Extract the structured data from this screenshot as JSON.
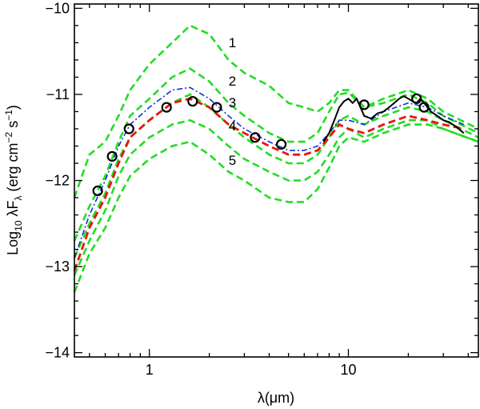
{
  "chart_data": {
    "type": "line",
    "x_scale": "log",
    "xlim": [
      0.42,
      45
    ],
    "ylim": [
      -14.05,
      -9.95
    ],
    "xlabel": "λ(μm)",
    "ylabel": "Log10 λFλ (erg cm−2 s−1)",
    "ylabel_parts": {
      "lead": "Log",
      "sub10": "10",
      "lam": " λF",
      "subl": "λ",
      "units": " (erg cm",
      "exp1": "−2",
      "s": " s",
      "exp2": "−1",
      "close": ")"
    },
    "x_ticks_labeled": [
      {
        "v": 1,
        "label": "1"
      },
      {
        "v": 10,
        "label": "10"
      }
    ],
    "x_ticks_minor": [
      0.5,
      0.6,
      0.7,
      0.8,
      0.9,
      2,
      3,
      4,
      5,
      6,
      7,
      8,
      9,
      20,
      30,
      40
    ],
    "y_ticks_labeled": [
      {
        "v": -10,
        "label": "−10"
      },
      {
        "v": -11,
        "label": "−11"
      },
      {
        "v": -12,
        "label": "−12"
      },
      {
        "v": -13,
        "label": "−13"
      },
      {
        "v": -14,
        "label": "−14"
      }
    ],
    "y_minor_step": 0.2,
    "series": [
      {
        "name": "model 1",
        "label": "1",
        "color": "#22dd22",
        "style": "dashed",
        "x": [
          0.42,
          0.5,
          0.6,
          0.7,
          0.8,
          1.0,
          1.3,
          1.6,
          2.0,
          2.5,
          3.0,
          4.0,
          5.0,
          6.0,
          7.0,
          8.0,
          9.0,
          10,
          12,
          15,
          20,
          25,
          30,
          45
        ],
        "y": [
          -12.2,
          -11.7,
          -11.55,
          -11.25,
          -10.95,
          -10.65,
          -10.4,
          -10.2,
          -10.3,
          -10.6,
          -10.75,
          -10.9,
          -11.1,
          -11.15,
          -11.2,
          -11.1,
          -10.95,
          -10.95,
          -11.15,
          -11.05,
          -10.95,
          -11.05,
          -11.2,
          -11.4
        ]
      },
      {
        "name": "model 2",
        "label": "2",
        "color": "#22dd22",
        "style": "dashed",
        "x": [
          0.42,
          0.5,
          0.6,
          0.7,
          0.8,
          1.0,
          1.3,
          1.6,
          2.0,
          2.5,
          3.0,
          4.0,
          5.0,
          6.0,
          7.0,
          8.0,
          9.0,
          10,
          12,
          15,
          20,
          25,
          30,
          45
        ],
        "y": [
          -12.7,
          -12.3,
          -11.95,
          -11.55,
          -11.25,
          -11.05,
          -10.8,
          -10.7,
          -10.85,
          -11.1,
          -11.25,
          -11.45,
          -11.55,
          -11.55,
          -11.45,
          -11.2,
          -11.0,
          -10.98,
          -11.15,
          -11.1,
          -11.0,
          -11.1,
          -11.25,
          -11.45
        ]
      },
      {
        "name": "model 3",
        "label": "3",
        "color": "#22dd22",
        "style": "dashed",
        "x": [
          0.42,
          0.5,
          0.6,
          0.7,
          0.8,
          1.0,
          1.3,
          1.6,
          2.0,
          2.5,
          3.0,
          4.0,
          5.0,
          6.0,
          7.0,
          8.0,
          9.0,
          10,
          12,
          15,
          20,
          25,
          30,
          45
        ],
        "y": [
          -12.9,
          -12.5,
          -12.15,
          -11.75,
          -11.5,
          -11.3,
          -11.1,
          -11.0,
          -11.15,
          -11.35,
          -11.5,
          -11.7,
          -11.8,
          -11.8,
          -11.7,
          -11.5,
          -11.3,
          -11.25,
          -11.35,
          -11.25,
          -11.15,
          -11.2,
          -11.3,
          -11.5
        ]
      },
      {
        "name": "model 4",
        "label": "4",
        "color": "#22dd22",
        "style": "dashed",
        "x": [
          0.42,
          0.5,
          0.6,
          0.7,
          0.8,
          1.0,
          1.3,
          1.6,
          2.0,
          2.5,
          3.0,
          4.0,
          5.0,
          6.0,
          7.0,
          8.0,
          9.0,
          10,
          12,
          15,
          20,
          25,
          30,
          45
        ],
        "y": [
          -13.1,
          -12.7,
          -12.35,
          -11.95,
          -11.7,
          -11.5,
          -11.35,
          -11.3,
          -11.4,
          -11.6,
          -11.75,
          -11.9,
          -12.0,
          -12.0,
          -11.9,
          -11.7,
          -11.5,
          -11.4,
          -11.5,
          -11.4,
          -11.3,
          -11.3,
          -11.4,
          -11.55
        ]
      },
      {
        "name": "model 5",
        "label": "5",
        "color": "#22dd22",
        "style": "dashed",
        "x": [
          0.42,
          0.5,
          0.6,
          0.7,
          0.8,
          1.0,
          1.3,
          1.6,
          2.0,
          2.5,
          3.0,
          4.0,
          5.0,
          6.0,
          7.0,
          8.0,
          9.0,
          10,
          12,
          15,
          20,
          25,
          30,
          45
        ],
        "y": [
          -13.3,
          -12.85,
          -12.55,
          -12.2,
          -11.95,
          -11.75,
          -11.6,
          -11.55,
          -11.7,
          -11.9,
          -12.0,
          -12.2,
          -12.25,
          -12.25,
          -12.1,
          -11.85,
          -11.6,
          -11.5,
          -11.55,
          -11.45,
          -11.35,
          -11.35,
          -11.4,
          -11.55
        ]
      },
      {
        "name": "fit (red)",
        "label": "",
        "color": "#ee1111",
        "style": "dashed",
        "x": [
          0.42,
          0.5,
          0.6,
          0.7,
          0.8,
          1.0,
          1.3,
          1.6,
          2.0,
          2.5,
          3.0,
          4.0,
          5.0,
          6.0,
          7.0,
          8.0,
          9.0,
          10,
          12,
          15,
          20,
          25,
          30,
          38
        ],
        "y": [
          -13.05,
          -12.55,
          -12.2,
          -11.8,
          -11.5,
          -11.3,
          -11.1,
          -11.05,
          -11.15,
          -11.35,
          -11.45,
          -11.6,
          -11.7,
          -11.7,
          -11.65,
          -11.5,
          -11.35,
          -11.4,
          -11.45,
          -11.35,
          -11.25,
          -11.3,
          -11.35,
          -11.4
        ]
      },
      {
        "name": "fit (blue)",
        "label": "",
        "color": "#1133cc",
        "style": "dashdot",
        "x": [
          0.42,
          0.5,
          0.6,
          0.7,
          0.8,
          1.0,
          1.3,
          1.6,
          2.0,
          2.5,
          3.0,
          4.0,
          5.0,
          6.0,
          7.0,
          8.0,
          9.0,
          10,
          12,
          15,
          20,
          25,
          30,
          38
        ],
        "y": [
          -12.9,
          -12.4,
          -12.0,
          -11.6,
          -11.35,
          -11.15,
          -10.95,
          -10.92,
          -11.05,
          -11.25,
          -11.4,
          -11.55,
          -11.65,
          -11.65,
          -11.6,
          -11.45,
          -11.3,
          -11.3,
          -11.35,
          -11.2,
          -11.1,
          -11.15,
          -11.25,
          -11.35
        ]
      },
      {
        "name": "observed spectrum",
        "label": "",
        "color": "#000000",
        "style": "solid",
        "x": [
          7.5,
          8,
          8.5,
          9,
          9.5,
          10,
          10.5,
          11,
          11.5,
          12,
          13,
          14,
          15,
          16,
          17,
          18,
          19,
          20,
          21,
          22,
          23,
          24,
          25,
          26,
          28,
          30,
          32,
          35,
          38
        ],
        "y": [
          -11.55,
          -11.45,
          -11.3,
          -11.15,
          -11.08,
          -11.05,
          -11.1,
          -11.05,
          -11.15,
          -11.25,
          -11.28,
          -11.22,
          -11.2,
          -11.15,
          -11.1,
          -11.05,
          -11.02,
          -11.05,
          -11.08,
          -11.1,
          -11.05,
          -11.1,
          -11.15,
          -11.2,
          -11.25,
          -11.3,
          -11.32,
          -11.38,
          -11.45
        ]
      }
    ],
    "points": {
      "name": "photometry",
      "x": [
        0.55,
        0.65,
        0.79,
        1.22,
        1.65,
        2.18,
        3.4,
        4.6,
        12,
        22,
        24
      ],
      "y": [
        -12.12,
        -11.72,
        -11.4,
        -11.15,
        -11.08,
        -11.15,
        -11.5,
        -11.58,
        -11.12,
        -11.05,
        -11.15
      ]
    },
    "model_labels": [
      {
        "text": "1",
        "x": 2.5,
        "y": -10.45
      },
      {
        "text": "2",
        "x": 2.5,
        "y": -10.9
      },
      {
        "text": "3",
        "x": 2.5,
        "y": -11.15
      },
      {
        "text": "4",
        "x": 2.5,
        "y": -11.42
      },
      {
        "text": "5",
        "x": 2.5,
        "y": -11.82
      }
    ]
  }
}
